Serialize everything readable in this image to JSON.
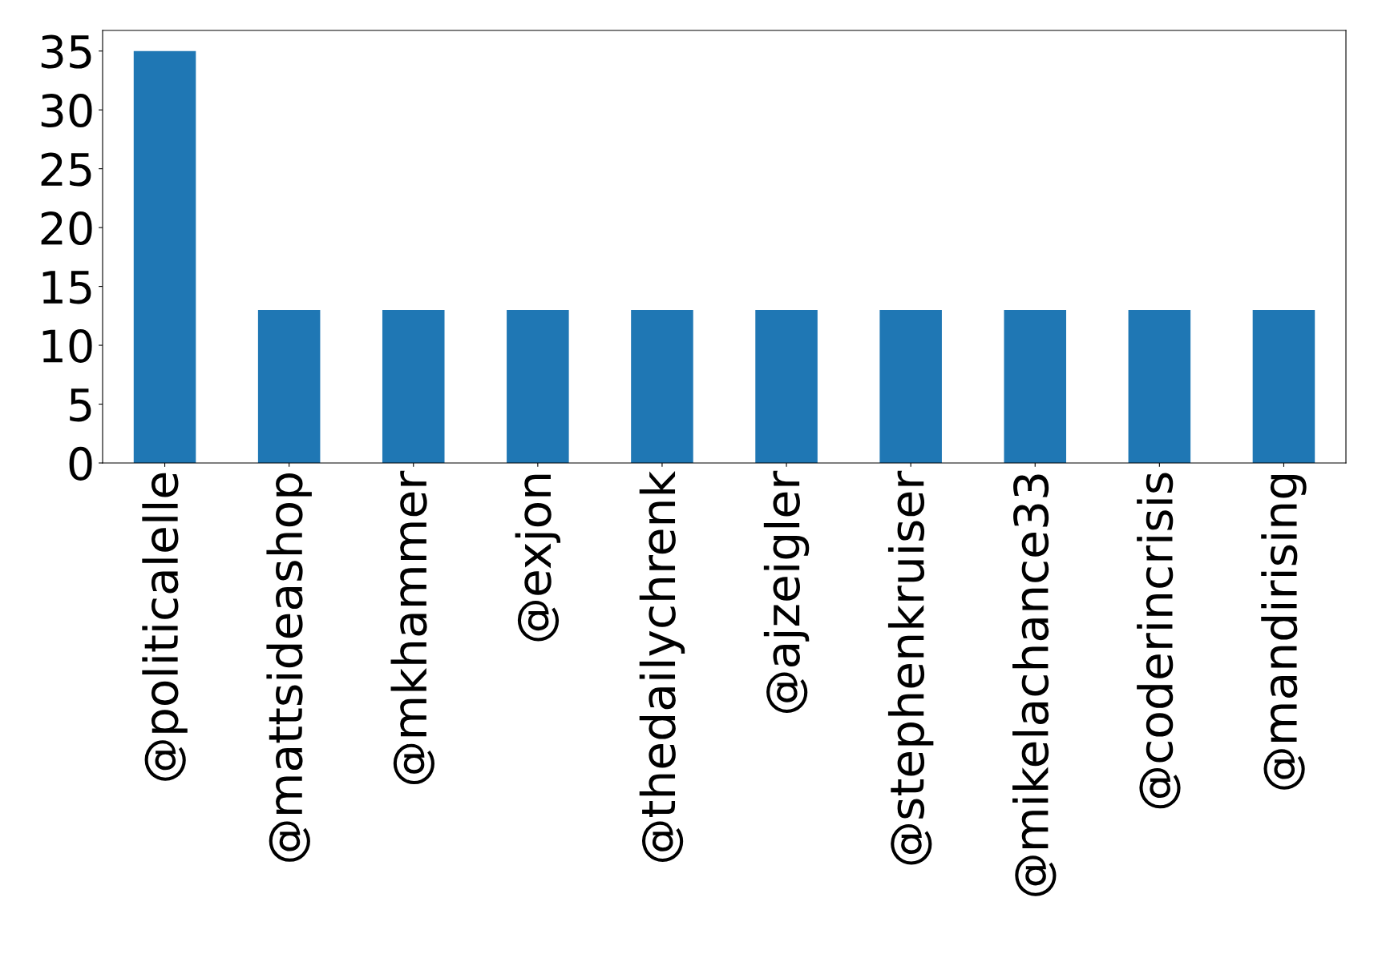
{
  "chart_data": {
    "type": "bar",
    "categories": [
      "@politicalelle",
      "@mattsideashop",
      "@mkhammer",
      "@exjon",
      "@thedailychrenk",
      "@ajzeigler",
      "@stephenkruiser",
      "@mikelachance33",
      "@coderincrisis",
      "@mandirising"
    ],
    "values": [
      35,
      13,
      13,
      13,
      13,
      13,
      13,
      13,
      13,
      13
    ],
    "color": "#1f77b4",
    "ylim": [
      0,
      36.75
    ],
    "yticks": [
      0,
      5,
      10,
      15,
      20,
      25,
      30,
      35
    ],
    "grid": false
  }
}
